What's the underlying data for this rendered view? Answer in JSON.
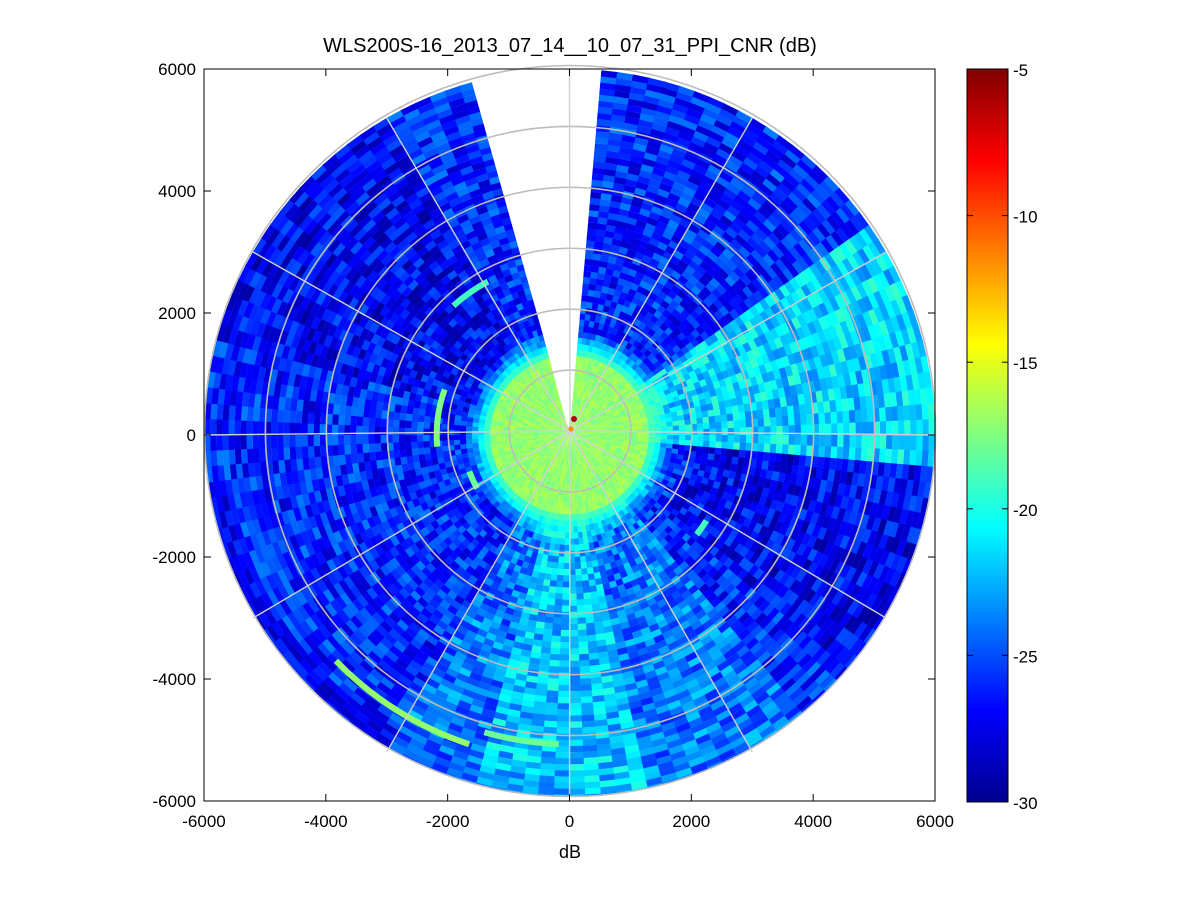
{
  "chart_data": {
    "type": "heatmap",
    "subtype": "polar-ppi",
    "title": "WLS200S-16_2013_07_14__10_07_31_PPI_CNR (dB)",
    "xlabel": "dB",
    "ylabel": "",
    "xlim": [
      -6000,
      6000
    ],
    "ylim": [
      -6000,
      6000
    ],
    "xticks": [
      "-6000",
      "-4000",
      "-2000",
      "0",
      "2000",
      "4000",
      "6000"
    ],
    "yticks": [
      "6000",
      "4000",
      "2000",
      "0",
      "-2000",
      "-4000",
      "-6000"
    ],
    "xtick_values": [
      -6000,
      -4000,
      -2000,
      0,
      2000,
      4000,
      6000
    ],
    "ytick_values": [
      6000,
      4000,
      2000,
      0,
      -2000,
      -4000,
      -6000
    ],
    "max_range": 6000,
    "range_rings": [
      1000,
      2000,
      3000,
      4000,
      5000,
      6000
    ],
    "spoke_angles_deg": [
      0,
      30,
      60,
      90,
      120,
      150,
      180,
      210,
      240,
      270,
      300,
      330
    ],
    "missing_sector_deg": [
      -15.5,
      3.8
    ],
    "colormap": "jet",
    "clim": [
      -30,
      -5
    ],
    "colorbar_ticks": [
      "-5",
      "-10",
      "-15",
      "-20",
      "-25",
      "-30"
    ],
    "colorbar_tick_values": [
      -5,
      -10,
      -15,
      -20,
      -25,
      -30
    ],
    "grid": true,
    "cnr_regions": [
      {
        "region": "near field",
        "range": [
          0,
          1400
        ],
        "approx_cnr_db": -17
      },
      {
        "region": "east sector",
        "azimuth_deg": [
          55,
          95
        ],
        "approx_cnr_db": -21.5
      },
      {
        "region": "south sector",
        "azimuth_deg": [
          168,
          195
        ],
        "approx_cnr_db": -22
      },
      {
        "region": "background",
        "approx_cnr_db": -26
      }
    ],
    "colors": {
      "ring": "#bdbdbd",
      "spoke": "#d0d0d0",
      "background": "#ffffff",
      "axes": "#000000"
    }
  }
}
